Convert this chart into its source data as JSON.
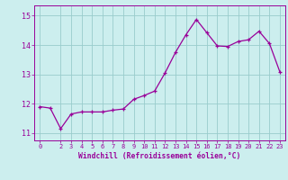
{
  "x": [
    0,
    1,
    2,
    3,
    4,
    5,
    6,
    7,
    8,
    9,
    10,
    11,
    12,
    13,
    14,
    15,
    16,
    17,
    18,
    19,
    20,
    21,
    22,
    23
  ],
  "y": [
    11.9,
    11.85,
    11.15,
    11.65,
    11.72,
    11.72,
    11.72,
    11.78,
    11.82,
    12.15,
    12.28,
    12.43,
    13.05,
    13.75,
    14.35,
    14.87,
    14.42,
    13.97,
    13.95,
    14.12,
    14.18,
    14.47,
    14.05,
    13.08
  ],
  "line_color": "#990099",
  "marker_color": "#990099",
  "bg_color": "#cceeee",
  "grid_color": "#99cccc",
  "xlabel": "Windchill (Refroidissement éolien,°C)",
  "xlim": [
    -0.5,
    23.5
  ],
  "ylim": [
    10.75,
    15.35
  ],
  "xtick_positions": [
    0,
    2,
    3,
    4,
    5,
    6,
    7,
    8,
    9,
    10,
    11,
    12,
    13,
    14,
    15,
    16,
    17,
    18,
    19,
    20,
    21,
    22,
    23
  ],
  "xtick_labels": [
    "0",
    "2",
    "3",
    "4",
    "5",
    "6",
    "7",
    "8",
    "9",
    "10",
    "11",
    "12",
    "13",
    "14",
    "15",
    "16",
    "17",
    "18",
    "19",
    "20",
    "21",
    "22",
    "23"
  ],
  "ytick_positions": [
    11,
    12,
    13,
    14,
    15
  ],
  "ytick_labels": [
    "11",
    "12",
    "13",
    "14",
    "15"
  ]
}
